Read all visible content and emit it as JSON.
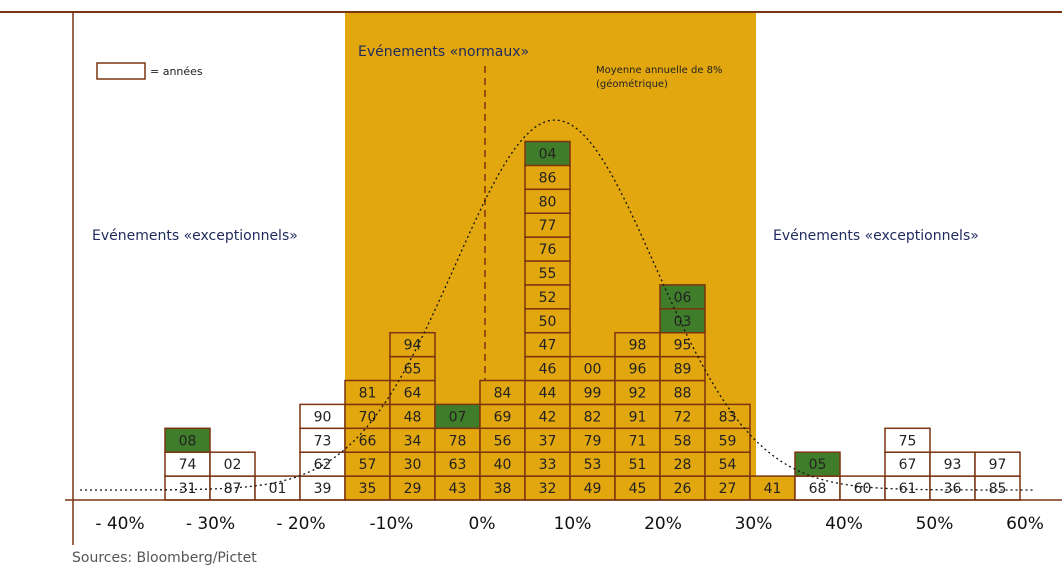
{
  "legend": {
    "label": "= années"
  },
  "band_title": "Evénements «normaux»",
  "mean_note": [
    "Moyenne annuelle de 8%",
    "(géométrique)"
  ],
  "side_labels": [
    "Evénements «exceptionnels»",
    "Evénements «exceptionnels»"
  ],
  "highlight_color": "#3f7d2a",
  "columns": [
    {
      "years": [
        "31",
        "74",
        {
          "text": "08"
        }
      ]
    },
    {
      "years": [
        "87",
        "02"
      ]
    },
    {
      "years": [
        "01"
      ]
    },
    {
      "years": [
        "39",
        "62",
        "73",
        "90"
      ]
    },
    {
      "years": [
        "35",
        "57",
        "66",
        "70",
        "81"
      ]
    },
    {
      "years": [
        "29",
        "30",
        "34",
        "48",
        "64",
        "65",
        "94"
      ]
    },
    {
      "years": [
        "43",
        "63",
        "78",
        {
          "text": "07"
        }
      ]
    },
    {
      "years": [
        "38",
        "40",
        "56",
        "69",
        "84"
      ]
    },
    {
      "years": [
        "32",
        "33",
        "37",
        "42",
        "44",
        "46",
        "47",
        "50",
        "52",
        "55",
        "76",
        "77",
        "80",
        "86",
        {
          "text": "04"
        }
      ]
    },
    {
      "years": [
        "49",
        "53",
        "79",
        "82",
        "99",
        "00"
      ]
    },
    {
      "years": [
        "45",
        "51",
        "71",
        "91",
        "92",
        "96",
        "98"
      ]
    },
    {
      "years": [
        "26",
        "28",
        "58",
        "72",
        "88",
        "89",
        "95",
        {
          "text": "03"
        },
        {
          "text": "06"
        }
      ]
    },
    {
      "years": [
        "27",
        "54",
        "59",
        "83"
      ]
    },
    {
      "years": [
        "41"
      ]
    },
    {
      "years": [
        "68",
        {
          "text": "05"
        }
      ]
    },
    {
      "years": [
        "60"
      ]
    },
    {
      "years": [
        "61",
        "67",
        "75"
      ]
    },
    {
      "years": [
        "36",
        "93"
      ]
    },
    {
      "years": [
        "85",
        "97"
      ]
    }
  ],
  "axis": {
    "ticks": [
      "- 40%",
      "- 30%",
      "- 20%",
      "-10%",
      "0%",
      "10%",
      "20%",
      "30%",
      "40%",
      "50%",
      "60%"
    ]
  },
  "source": "Sources: Bloomberg/Pictet"
}
